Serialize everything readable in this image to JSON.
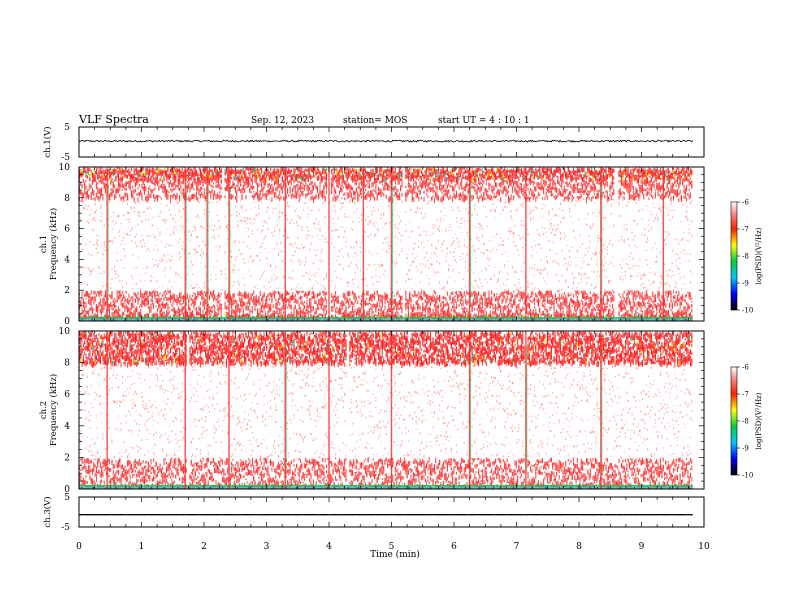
{
  "header": {
    "title": "VLF Spectra",
    "date": "Sep. 12, 2023",
    "station": "station= MOS",
    "start_ut": "start  UT =   4 : 10 : 1"
  },
  "chart_data": [
    {
      "type": "line",
      "name": "ch.1 waveform",
      "ylabel": "ch.1(V)",
      "ylim": [
        -5,
        5
      ],
      "y_ticks": [
        "5",
        "-5"
      ],
      "xlim": [
        0,
        10
      ],
      "mean_level": 0.3,
      "noise_amplitude": 0.3,
      "x_end": 9.82
    },
    {
      "type": "heatmap",
      "name": "ch.1 spectrogram",
      "ylabel_line1": "ch.1",
      "ylabel_line2": "Frequency (kHz)",
      "ylim": [
        0,
        10
      ],
      "y_ticks": [
        "0",
        "2",
        "4",
        "6",
        "8",
        "10"
      ],
      "xlim": [
        0,
        10
      ],
      "x_end": 9.82,
      "bands_khz": [
        [
          0,
          0.5,
          "intense"
        ],
        [
          0.5,
          2.0,
          "strong"
        ],
        [
          2.0,
          8.0,
          "sparse"
        ],
        [
          8.0,
          9.3,
          "strong"
        ],
        [
          9.3,
          10.0,
          "intense"
        ]
      ],
      "gaps_min": [
        2.3,
        4.0,
        5.2,
        8.6
      ],
      "bursts_min": [
        0.45,
        1.7,
        2.05,
        2.4,
        3.3,
        4.0,
        4.55,
        5.0,
        6.25,
        7.15,
        8.35,
        9.35
      ],
      "colorbar": {
        "label": "log(PSD)(V²/Hz)",
        "range": [
          -10,
          -6
        ],
        "ticks": [
          "-6",
          "-7",
          "-8",
          "-9",
          "-10"
        ]
      }
    },
    {
      "type": "heatmap",
      "name": "ch.2 spectrogram",
      "ylabel_line1": "ch.2",
      "ylabel_line2": "Frequency (kHz)",
      "ylim": [
        0,
        10
      ],
      "y_ticks": [
        "0",
        "2",
        "4",
        "6",
        "8",
        "10"
      ],
      "xlim": [
        0,
        10
      ],
      "x_end": 9.82,
      "bands_khz": [
        [
          0,
          0.3,
          "intense"
        ],
        [
          0.3,
          2.0,
          "strong"
        ],
        [
          2.0,
          8.0,
          "sparse"
        ],
        [
          8.0,
          10.0,
          "intense"
        ]
      ],
      "gaps_min": [
        1.75,
        4.3,
        7.15
      ],
      "bursts_min": [
        0.45,
        1.7,
        2.4,
        3.3,
        4.0,
        5.0,
        6.25,
        7.15,
        8.35
      ],
      "colorbar": {
        "label": "log(PSD)(V²/Hz)",
        "range": [
          -10,
          -6
        ],
        "ticks": [
          "-6",
          "-7",
          "-8",
          "-9",
          "-10"
        ]
      }
    },
    {
      "type": "line",
      "name": "ch.3 waveform",
      "ylabel": "ch.3(V)",
      "ylim": [
        -5,
        5
      ],
      "y_ticks": [
        "5",
        "-5"
      ],
      "xlim": [
        0,
        10
      ],
      "mean_level": -0.9,
      "noise_amplitude": 0.02,
      "x_end": 9.82
    }
  ],
  "x_axis": {
    "label": "Time  (min)",
    "ticks": [
      "0",
      "1",
      "2",
      "3",
      "4",
      "5",
      "6",
      "7",
      "8",
      "9",
      "10"
    ]
  },
  "colors": {
    "intense": "#ff2020",
    "strong": "#ff3030",
    "sparse": "#ff6060",
    "yellow": "#ffe000",
    "green": "#20c060",
    "cyan": "#30d0d0",
    "blue": "#0020ff",
    "trace": "#000000"
  }
}
